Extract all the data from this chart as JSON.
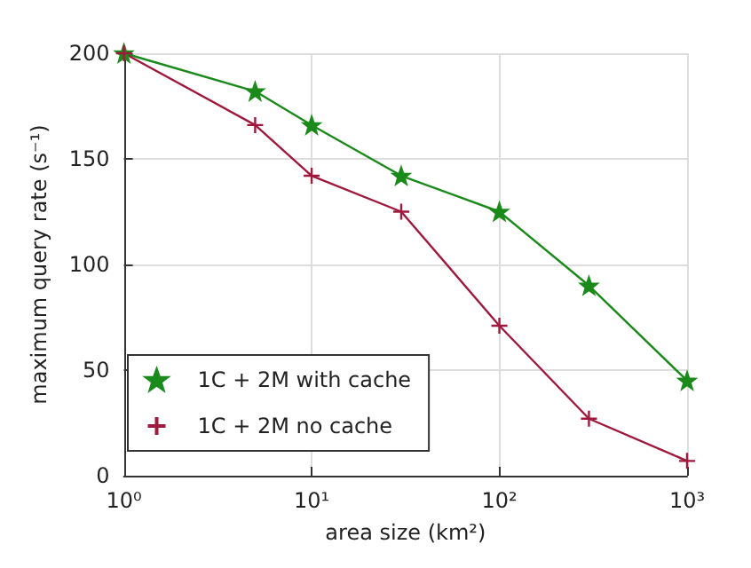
{
  "chart_data": {
    "type": "line",
    "xlabel": "area size (km²)",
    "ylabel": "maximum query rate (s⁻¹)",
    "log": "x",
    "x": [
      1,
      5,
      10,
      30,
      100,
      300,
      1000
    ],
    "xlim": [
      1,
      1000
    ],
    "xticks": [
      {
        "value": 1,
        "label": "10⁰"
      },
      {
        "value": 10,
        "label": "10¹"
      },
      {
        "value": 100,
        "label": "10²"
      },
      {
        "value": 1000,
        "label": "10³"
      }
    ],
    "ylim": [
      0,
      200
    ],
    "yticks": [
      0,
      50,
      100,
      150,
      200
    ],
    "grid": true,
    "legend": "bottom left",
    "series": [
      {
        "name": "1C + 2M with cache",
        "color": "#1a8a1a",
        "marker": "star",
        "values": [
          200,
          182,
          166,
          142,
          125,
          90,
          45
        ]
      },
      {
        "name": "1C + 2M no cache",
        "color": "#a0183c",
        "marker": "cross",
        "values": [
          200,
          166,
          142,
          125,
          71,
          27,
          7
        ]
      }
    ]
  }
}
